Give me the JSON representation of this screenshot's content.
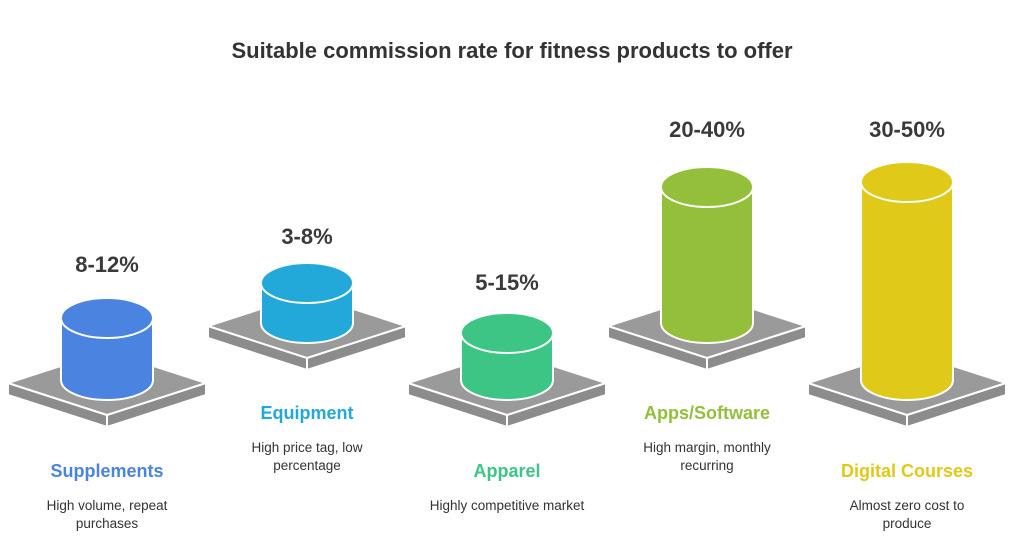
{
  "title": "Suitable commission rate for fitness products to offer",
  "items": [
    {
      "rate": "8-12%",
      "name": "Supplements",
      "desc": "High volume, repeat purchases",
      "color": "#4a84e0"
    },
    {
      "rate": "3-8%",
      "name": "Equipment",
      "desc": "High price tag, low percentage",
      "color": "#22a9d9"
    },
    {
      "rate": "5-15%",
      "name": "Apparel",
      "desc": "Highly competitive market",
      "color": "#3cc585"
    },
    {
      "rate": "20-40%",
      "name": "Apps/Software",
      "desc": "High margin, monthly recurring",
      "color": "#93bf3b"
    },
    {
      "rate": "30-50%",
      "name": "Digital Courses",
      "desc": "Almost zero cost to produce",
      "color": "#e0c918"
    }
  ],
  "platform_color": "#9a9a9a"
}
